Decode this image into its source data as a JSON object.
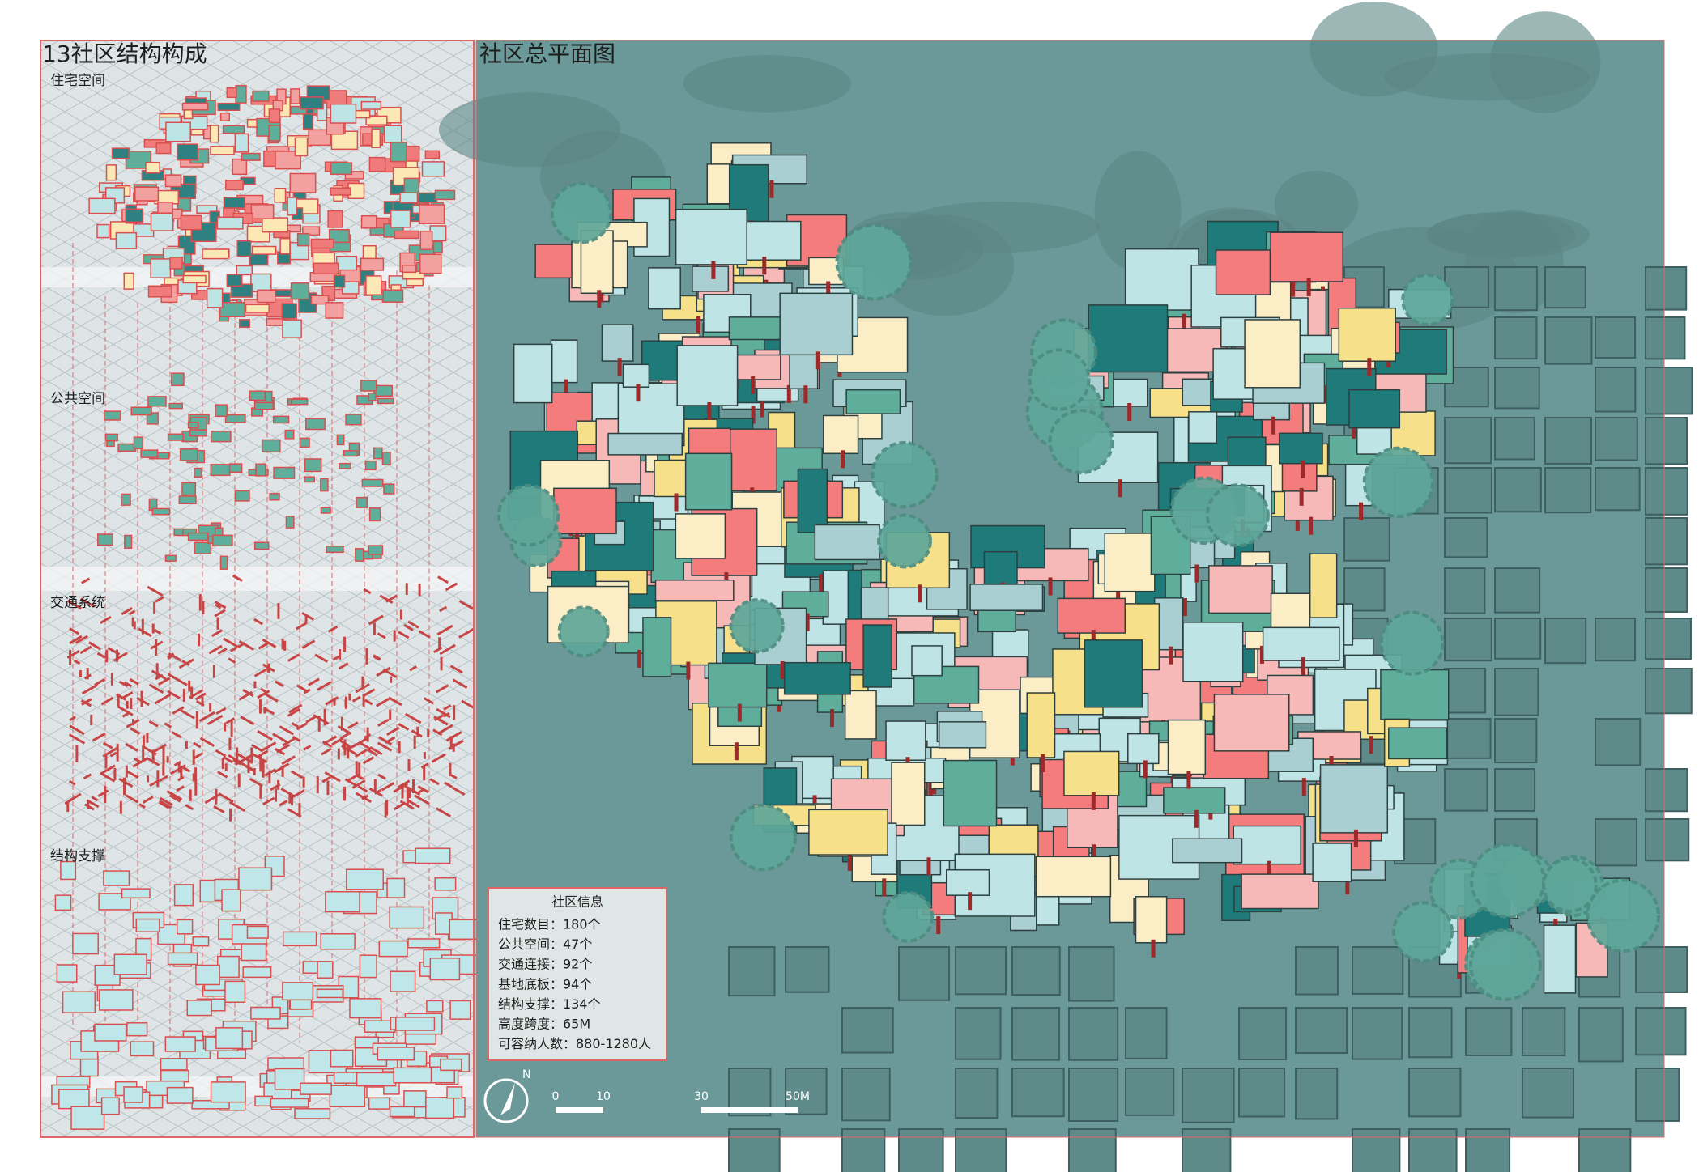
{
  "left_panel": {
    "title": "13社区结构构成",
    "layers": [
      "住宅空间",
      "公共空间",
      "交通系统",
      "结构支撑"
    ]
  },
  "map": {
    "title": "社区总平面图",
    "info_box": {
      "title": "社区信息",
      "lines": [
        "住宅数目：180个",
        "公共空间：47个",
        "交通连接：92个",
        "基地底板：94个",
        "结构支撑：134个",
        "高度跨度：65M",
        "可容纳人数：880-1280人"
      ]
    },
    "north_label": "N",
    "scale_labels": [
      "0",
      "10",
      "30",
      "50M"
    ]
  }
}
